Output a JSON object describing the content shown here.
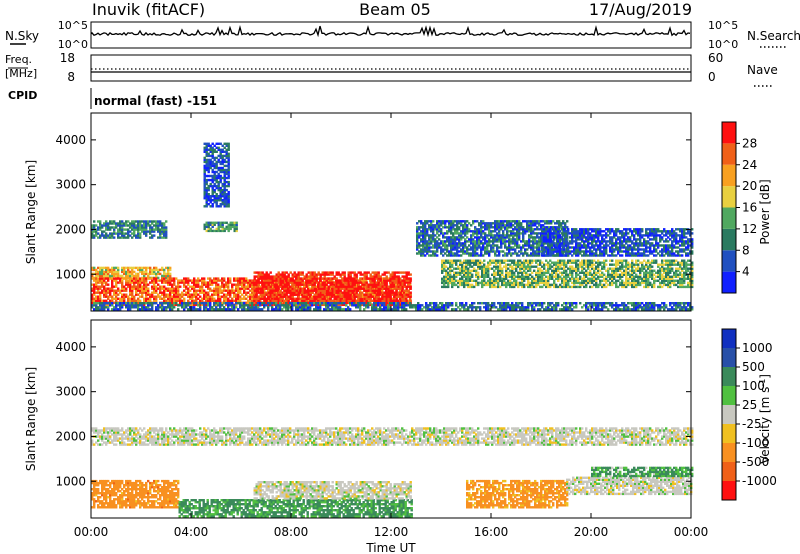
{
  "header": {
    "station": "Inuvik (fitACF)",
    "beam": "Beam 05",
    "date": "17/Aug/2019"
  },
  "summary": {
    "nsky_label": "N.Sky",
    "nsky_ticks": [
      "10^5",
      "10^0"
    ],
    "nsearch_label": "N.Search",
    "nsearch_ticks": [
      "10^5",
      "10^0"
    ],
    "freq_label_1": "Freq.",
    "freq_label_2": "[MHz]",
    "freq_ticks": [
      "18",
      "8"
    ],
    "nave_label": "Nave",
    "nave_ticks": [
      "60",
      "0"
    ],
    "cpid_label": "CPID",
    "cpid_text": "normal (fast) -151"
  },
  "chart_data": [
    {
      "type": "heatmap",
      "title": "",
      "xlabel": "Time UT",
      "ylabel": "Slant Range [km]",
      "xlim_hours": [
        0,
        24
      ],
      "xticks": [
        "00:00",
        "04:00",
        "08:00",
        "12:00",
        "16:00",
        "20:00",
        "00:00"
      ],
      "ylim_km": [
        180,
        4600
      ],
      "yticks": [
        "1000",
        "2000",
        "3000",
        "4000"
      ],
      "colorbar": {
        "label": "Power [dB]",
        "ticks": [
          "4",
          "8",
          "12",
          "16",
          "20",
          "24",
          "28"
        ],
        "colors": [
          "#1020ff",
          "#2050c0",
          "#2a7a60",
          "#50a860",
          "#e8d040",
          "#f8a020",
          "#f06018",
          "#ff1010"
        ]
      },
      "regions": [
        {
          "t": [
            0.0,
            3.2
          ],
          "r": [
            900,
            1150
          ],
          "v": 20
        },
        {
          "t": [
            0.0,
            12.8
          ],
          "r": [
            300,
            900
          ],
          "v": 26
        },
        {
          "t": [
            6.5,
            12.8
          ],
          "r": [
            300,
            1050
          ],
          "v": 30
        },
        {
          "t": [
            0.0,
            3.0
          ],
          "r": [
            1800,
            2200
          ],
          "v": 10
        },
        {
          "t": [
            4.5,
            5.8
          ],
          "r": [
            1950,
            2150
          ],
          "v": 12
        },
        {
          "t": [
            13.0,
            19.0
          ],
          "r": [
            1400,
            2200
          ],
          "v": 8
        },
        {
          "t": [
            18.0,
            24.0
          ],
          "r": [
            1400,
            2000
          ],
          "v": 6
        },
        {
          "t": [
            14.0,
            24.0
          ],
          "r": [
            700,
            1300
          ],
          "v": 14
        },
        {
          "t": [
            0.0,
            24.0
          ],
          "r": [
            200,
            350
          ],
          "v": 8
        },
        {
          "t": [
            4.5,
            5.5
          ],
          "r": [
            2500,
            3900
          ],
          "v": 6
        }
      ]
    },
    {
      "type": "heatmap",
      "title": "",
      "xlabel": "Time UT",
      "ylabel": "Slant Range [km]",
      "xlim_hours": [
        0,
        24
      ],
      "xticks": [
        "00:00",
        "04:00",
        "08:00",
        "12:00",
        "16:00",
        "20:00",
        "00:00"
      ],
      "ylim_km": [
        180,
        4600
      ],
      "yticks": [
        "1000",
        "2000",
        "3000",
        "4000"
      ],
      "colorbar": {
        "label": "Velocity [m s-1]",
        "ticks": [
          "1000",
          "500",
          "100",
          "25",
          "-25",
          "-100",
          "-500",
          "-1000"
        ],
        "colors": [
          "#1030c0",
          "#2850a8",
          "#3a8a5a",
          "#50c040",
          "#c8c8c0",
          "#f0c020",
          "#f89020",
          "#f06018",
          "#ff1010"
        ]
      },
      "regions": [
        {
          "t": [
            0.0,
            3.5
          ],
          "r": [
            400,
            1000
          ],
          "v": -300
        },
        {
          "t": [
            3.5,
            12.8
          ],
          "r": [
            200,
            600
          ],
          "v": 150
        },
        {
          "t": [
            6.5,
            12.8
          ],
          "r": [
            600,
            1000
          ],
          "v": 0
        },
        {
          "t": [
            0.0,
            24.0
          ],
          "r": [
            1800,
            2200
          ],
          "v": 0
        },
        {
          "t": [
            15.0,
            19.0
          ],
          "r": [
            400,
            1000
          ],
          "v": -200
        },
        {
          "t": [
            19.0,
            24.0
          ],
          "r": [
            700,
            1100
          ],
          "v": 0
        },
        {
          "t": [
            20.0,
            24.0
          ],
          "r": [
            1100,
            1300
          ],
          "v": 120
        }
      ]
    }
  ]
}
